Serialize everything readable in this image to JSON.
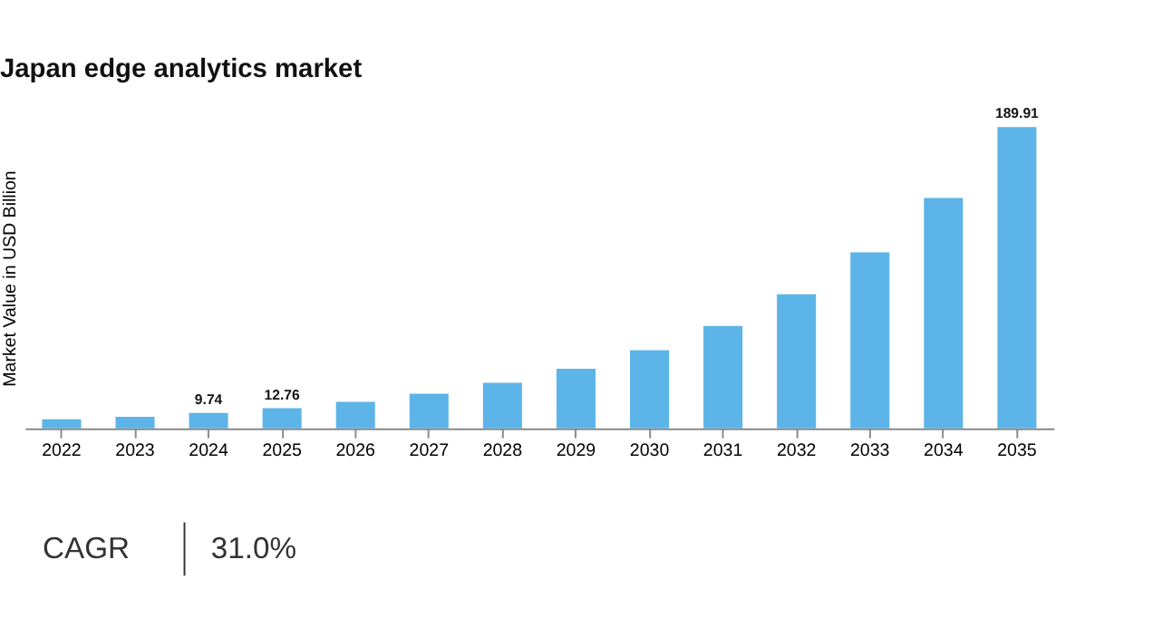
{
  "chart_data": {
    "type": "bar",
    "title": "Japan edge analytics market",
    "ylabel": "Market Value in USD Billion",
    "categories": [
      "2022",
      "2023",
      "2024",
      "2025",
      "2026",
      "2027",
      "2028",
      "2029",
      "2030",
      "2031",
      "2032",
      "2033",
      "2034",
      "2035"
    ],
    "values": [
      5.7,
      7.4,
      9.74,
      12.76,
      16.7,
      21.9,
      28.7,
      37.6,
      49.3,
      64.6,
      84.6,
      110.9,
      145.2,
      189.91
    ],
    "value_labels": [
      null,
      null,
      "9.74",
      "12.76",
      null,
      null,
      null,
      null,
      null,
      null,
      null,
      null,
      null,
      "189.91"
    ],
    "color": "#5cb4e8",
    "annotations": [
      "CAGR",
      "31.0%"
    ]
  }
}
